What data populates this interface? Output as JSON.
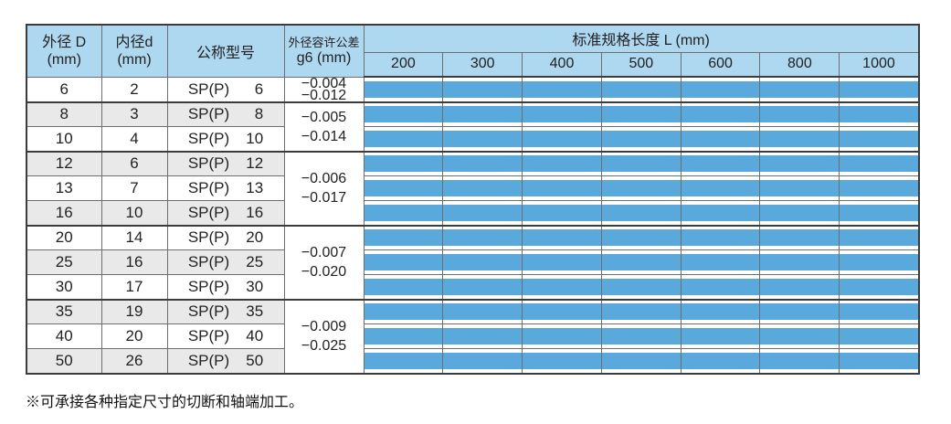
{
  "colors": {
    "header_bg": "#aed7f0",
    "bar_blue": "#5aa9dc",
    "alt_row_gray": "#e9e9e9",
    "grid_line": "#6e6e6e",
    "heavy_line": "#3c3c3c"
  },
  "table": {
    "header": {
      "outer_diameter": {
        "line1": "外径 D",
        "line2": "(mm)"
      },
      "inner_diameter": {
        "line1": "内径d",
        "line2": "(mm)"
      },
      "model": "公称型号",
      "tolerance": {
        "line1": "外径容许公差",
        "line2": "g6 (mm)"
      },
      "length_title": "标准规格长度 L (mm)",
      "lengths": [
        "200",
        "300",
        "400",
        "500",
        "600",
        "800",
        "1000"
      ]
    },
    "groups": [
      {
        "tolerance_lines": [
          "−0.004",
          "−0.012"
        ],
        "rows": [
          {
            "outer_d": "6",
            "inner_d": "2",
            "model_prefix": "SP(P)",
            "model_size": "6",
            "available_lengths": [
              "200",
              "300",
              "400",
              "500",
              "600",
              "800",
              "1000"
            ]
          }
        ]
      },
      {
        "tolerance_lines": [
          "−0.005",
          "−0.014"
        ],
        "rows": [
          {
            "outer_d": "8",
            "inner_d": "3",
            "model_prefix": "SP(P)",
            "model_size": "8",
            "available_lengths": [
              "200",
              "300",
              "400",
              "500",
              "600",
              "800",
              "1000"
            ]
          },
          {
            "outer_d": "10",
            "inner_d": "4",
            "model_prefix": "SP(P)",
            "model_size": "10",
            "available_lengths": [
              "200",
              "300",
              "400",
              "500",
              "600",
              "800",
              "1000"
            ]
          }
        ]
      },
      {
        "tolerance_lines": [
          "−0.006",
          "−0.017"
        ],
        "rows": [
          {
            "outer_d": "12",
            "inner_d": "6",
            "model_prefix": "SP(P)",
            "model_size": "12",
            "available_lengths": [
              "200",
              "300",
              "400",
              "500",
              "600",
              "800",
              "1000"
            ]
          },
          {
            "outer_d": "13",
            "inner_d": "7",
            "model_prefix": "SP(P)",
            "model_size": "13",
            "available_lengths": [
              "200",
              "300",
              "400",
              "500",
              "600",
              "800",
              "1000"
            ]
          },
          {
            "outer_d": "16",
            "inner_d": "10",
            "model_prefix": "SP(P)",
            "model_size": "16",
            "available_lengths": [
              "200",
              "300",
              "400",
              "500",
              "600",
              "800",
              "1000"
            ]
          }
        ]
      },
      {
        "tolerance_lines": [
          "−0.007",
          "−0.020"
        ],
        "rows": [
          {
            "outer_d": "20",
            "inner_d": "14",
            "model_prefix": "SP(P)",
            "model_size": "20",
            "available_lengths": [
              "200",
              "300",
              "400",
              "500",
              "600",
              "800",
              "1000"
            ]
          },
          {
            "outer_d": "25",
            "inner_d": "16",
            "model_prefix": "SP(P)",
            "model_size": "25",
            "available_lengths": [
              "200",
              "300",
              "400",
              "500",
              "600",
              "800",
              "1000"
            ]
          },
          {
            "outer_d": "30",
            "inner_d": "17",
            "model_prefix": "SP(P)",
            "model_size": "30",
            "available_lengths": [
              "200",
              "300",
              "400",
              "500",
              "600",
              "800",
              "1000"
            ]
          }
        ]
      },
      {
        "tolerance_lines": [
          "−0.009",
          "−0.025"
        ],
        "rows": [
          {
            "outer_d": "35",
            "inner_d": "19",
            "model_prefix": "SP(P)",
            "model_size": "35",
            "available_lengths": [
              "200",
              "300",
              "400",
              "500",
              "600",
              "800",
              "1000"
            ]
          },
          {
            "outer_d": "40",
            "inner_d": "20",
            "model_prefix": "SP(P)",
            "model_size": "40",
            "available_lengths": [
              "200",
              "300",
              "400",
              "500",
              "600",
              "800",
              "1000"
            ]
          },
          {
            "outer_d": "50",
            "inner_d": "26",
            "model_prefix": "SP(P)",
            "model_size": "50",
            "available_lengths": [
              "200",
              "300",
              "400",
              "500",
              "600",
              "800",
              "1000"
            ]
          }
        ]
      }
    ]
  },
  "footnote": "※可承接各种指定尺寸的切断和轴端加工。"
}
